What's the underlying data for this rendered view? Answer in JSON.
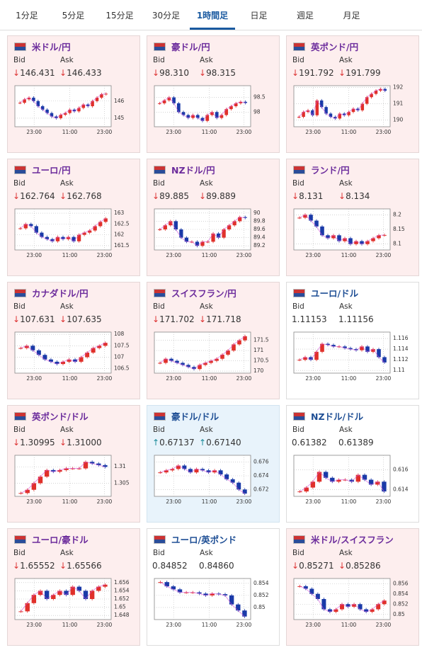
{
  "tabs": {
    "items": [
      "1分足",
      "5分足",
      "15分足",
      "30分足",
      "1時間足",
      "日足",
      "週足",
      "月足"
    ],
    "active": 4
  },
  "labels": {
    "bid": "Bid",
    "ask": "Ask"
  },
  "panels": [
    {
      "name": "米ドル/円",
      "direction": "down",
      "bid_arrow": "↓",
      "bid": "146.431",
      "ask_arrow": "↓",
      "ask": "146.433",
      "chart": {
        "ylim": [
          144.5,
          146.9
        ],
        "yticks": [
          145,
          146
        ],
        "xticks": [
          "23:00",
          "11:00",
          "23:00"
        ],
        "closes": [
          145.9,
          146.1,
          146.2,
          146.0,
          145.7,
          145.5,
          145.3,
          145.1,
          145.0,
          145.2,
          145.3,
          145.5,
          145.4,
          145.6,
          145.8,
          145.7,
          146.0,
          146.2,
          146.4,
          146.43
        ]
      }
    },
    {
      "name": "豪ドル/円",
      "direction": "down",
      "bid_arrow": "↓",
      "bid": "98.310",
      "ask_arrow": "↓",
      "ask": "98.315",
      "chart": {
        "ylim": [
          97.5,
          98.9
        ],
        "yticks": [
          98,
          98.5
        ],
        "xticks": [
          "23:00",
          "11:00",
          "23:00"
        ],
        "closes": [
          98.3,
          98.4,
          98.5,
          98.3,
          98.0,
          97.9,
          97.8,
          97.9,
          97.8,
          97.7,
          97.9,
          98.0,
          97.8,
          97.9,
          98.1,
          98.2,
          98.3,
          98.35,
          98.31
        ]
      }
    },
    {
      "name": "英ポンド/円",
      "direction": "down",
      "bid_arrow": "↓",
      "bid": "191.792",
      "ask_arrow": "↓",
      "ask": "191.799",
      "chart": {
        "ylim": [
          189.6,
          192.1
        ],
        "yticks": [
          190,
          191,
          192
        ],
        "xticks": [
          "23:00",
          "11:00",
          "23:00"
        ],
        "closes": [
          190.2,
          190.5,
          190.6,
          190.3,
          191.2,
          190.8,
          190.4,
          190.2,
          190.1,
          190.4,
          190.3,
          190.5,
          190.7,
          190.6,
          191.0,
          191.4,
          191.6,
          191.8,
          191.9,
          191.79
        ]
      }
    },
    {
      "name": "ユーロ/円",
      "direction": "down",
      "bid_arrow": "↓",
      "bid": "162.764",
      "ask_arrow": "↓",
      "ask": "162.768",
      "chart": {
        "ylim": [
          161.3,
          163.2
        ],
        "yticks": [
          161.5,
          162,
          162.5,
          163
        ],
        "xticks": [
          "23:00",
          "11:00",
          "23:00"
        ],
        "closes": [
          162.3,
          162.5,
          162.4,
          162.1,
          161.9,
          161.8,
          161.7,
          161.9,
          161.8,
          161.9,
          161.7,
          162.0,
          162.1,
          162.2,
          162.4,
          162.6,
          162.76
        ]
      }
    },
    {
      "name": "NZドル/円",
      "direction": "down",
      "bid_arrow": "↓",
      "bid": "89.885",
      "ask_arrow": "↓",
      "ask": "89.889",
      "chart": {
        "ylim": [
          89.1,
          90.1
        ],
        "yticks": [
          89.2,
          89.4,
          89.6,
          89.8,
          90
        ],
        "xticks": [
          "23:00",
          "11:00",
          "23:00"
        ],
        "closes": [
          89.6,
          89.7,
          89.8,
          89.6,
          89.4,
          89.3,
          89.3,
          89.2,
          89.3,
          89.3,
          89.5,
          89.4,
          89.6,
          89.7,
          89.8,
          89.9,
          89.88
        ]
      }
    },
    {
      "name": "ランド/円",
      "direction": "down",
      "bid_arrow": "↓",
      "bid": "8.131",
      "ask_arrow": "↓",
      "ask": "8.134",
      "chart": {
        "ylim": [
          8.08,
          8.22
        ],
        "yticks": [
          8.1,
          8.15,
          8.2
        ],
        "xticks": [
          "23:00",
          "11:00",
          "23:00"
        ],
        "closes": [
          8.19,
          8.2,
          8.18,
          8.16,
          8.13,
          8.12,
          8.13,
          8.11,
          8.12,
          8.1,
          8.11,
          8.1,
          8.11,
          8.12,
          8.13,
          8.131
        ]
      }
    },
    {
      "name": "カナダドル/円",
      "direction": "down",
      "bid_arrow": "↓",
      "bid": "107.631",
      "ask_arrow": "↓",
      "ask": "107.635",
      "chart": {
        "ylim": [
          106.3,
          108.1
        ],
        "yticks": [
          106.5,
          107,
          107.5,
          108
        ],
        "xticks": [
          "23:00",
          "11:00",
          "23:00"
        ],
        "closes": [
          107.4,
          107.5,
          107.3,
          107.1,
          106.9,
          106.8,
          106.7,
          106.8,
          106.9,
          106.8,
          107.0,
          107.2,
          107.4,
          107.5,
          107.63
        ]
      }
    },
    {
      "name": "スイスフラン/円",
      "direction": "down",
      "bid_arrow": "↓",
      "bid": "171.702",
      "ask_arrow": "↓",
      "ask": "171.718",
      "chart": {
        "ylim": [
          169.9,
          171.9
        ],
        "yticks": [
          170,
          170.5,
          171,
          171.5
        ],
        "xticks": [
          "23:00",
          "11:00",
          "23:00"
        ],
        "closes": [
          170.4,
          170.6,
          170.5,
          170.4,
          170.3,
          170.2,
          170.1,
          170.3,
          170.4,
          170.5,
          170.6,
          170.8,
          171.0,
          171.3,
          171.5,
          171.7
        ]
      }
    },
    {
      "name": "ユーロ/ドル",
      "direction": "flat",
      "bid": "1.11153",
      "ask": "1.11156",
      "chart": {
        "ylim": [
          1.1095,
          1.1172
        ],
        "yticks": [
          1.11,
          1.112,
          1.114,
          1.116
        ],
        "xticks": [
          "23:00",
          "11:00",
          "23:00"
        ],
        "closes": [
          1.112,
          1.1125,
          1.112,
          1.1135,
          1.115,
          1.1148,
          1.1145,
          1.1145,
          1.1142,
          1.114,
          1.1138,
          1.1145,
          1.1135,
          1.114,
          1.1125,
          1.1115
        ]
      }
    },
    {
      "name": "英ポンド/ドル",
      "direction": "down",
      "bid_arrow": "↓",
      "bid": "1.30995",
      "ask_arrow": "↓",
      "ask": "1.31000",
      "chart": {
        "ylim": [
          1.301,
          1.3135
        ],
        "yticks": [
          1.305,
          1.31
        ],
        "xticks": [
          "23:00",
          "11:00",
          "23:00"
        ],
        "closes": [
          1.302,
          1.303,
          1.305,
          1.307,
          1.309,
          1.3085,
          1.309,
          1.3095,
          1.3095,
          1.3095,
          1.3115,
          1.311,
          1.3105,
          1.30995
        ]
      }
    },
    {
      "name": "豪ドル/ドル",
      "direction": "up",
      "bid_arrow": "↑",
      "bid": "0.67137",
      "ask_arrow": "↑",
      "ask": "0.67140",
      "chart": {
        "ylim": [
          0.671,
          0.677
        ],
        "yticks": [
          0.672,
          0.674,
          0.676
        ],
        "xticks": [
          "23:00",
          "11:00",
          "23:00"
        ],
        "closes": [
          0.6745,
          0.6748,
          0.675,
          0.6755,
          0.675,
          0.6745,
          0.675,
          0.6748,
          0.6745,
          0.6748,
          0.6742,
          0.6735,
          0.673,
          0.672,
          0.6714
        ]
      }
    },
    {
      "name": "NZドル/ドル",
      "direction": "flat",
      "bid": "0.61382",
      "ask": "0.61389",
      "chart": {
        "ylim": [
          0.6133,
          0.6175
        ],
        "yticks": [
          0.614,
          0.616
        ],
        "xticks": [
          "23:00",
          "11:00",
          "23:00"
        ],
        "closes": [
          0.6138,
          0.6142,
          0.6148,
          0.6158,
          0.6152,
          0.6148,
          0.615,
          0.615,
          0.6148,
          0.6155,
          0.615,
          0.6145,
          0.6148,
          0.6138
        ]
      }
    },
    {
      "name": "ユーロ/豪ドル",
      "direction": "down",
      "bid_arrow": "↓",
      "bid": "1.65552",
      "ask_arrow": "↓",
      "ask": "1.65566",
      "chart": {
        "ylim": [
          1.647,
          1.657
        ],
        "yticks": [
          1.648,
          1.65,
          1.652,
          1.654,
          1.656
        ],
        "xticks": [
          "23:00",
          "11:00",
          "23:00"
        ],
        "closes": [
          1.649,
          1.651,
          1.653,
          1.654,
          1.652,
          1.653,
          1.654,
          1.653,
          1.655,
          1.654,
          1.652,
          1.654,
          1.655,
          1.6555
        ]
      }
    },
    {
      "name": "ユーロ/英ポンド",
      "direction": "flat",
      "bid": "0.84852",
      "ask": "0.84860",
      "chart": {
        "ylim": [
          0.848,
          0.8548
        ],
        "yticks": [
          0.85,
          0.852,
          0.854
        ],
        "xticks": [
          "23:00",
          "11:00",
          "23:00"
        ],
        "closes": [
          0.8542,
          0.8535,
          0.853,
          0.8525,
          0.8525,
          0.8525,
          0.8523,
          0.852,
          0.8523,
          0.8522,
          0.852,
          0.8505,
          0.8495,
          0.8485
        ]
      }
    },
    {
      "name": "米ドル/スイスフラン",
      "direction": "down",
      "bid_arrow": "↓",
      "bid": "0.85271",
      "ask_arrow": "↓",
      "ask": "0.85286",
      "chart": {
        "ylim": [
          0.849,
          0.857
        ],
        "yticks": [
          0.85,
          0.852,
          0.854,
          0.856
        ],
        "xticks": [
          "23:00",
          "11:00",
          "23:00"
        ],
        "closes": [
          0.8555,
          0.855,
          0.854,
          0.853,
          0.851,
          0.8505,
          0.851,
          0.852,
          0.8515,
          0.852,
          0.851,
          0.8505,
          0.851,
          0.852,
          0.8527
        ]
      }
    }
  ]
}
